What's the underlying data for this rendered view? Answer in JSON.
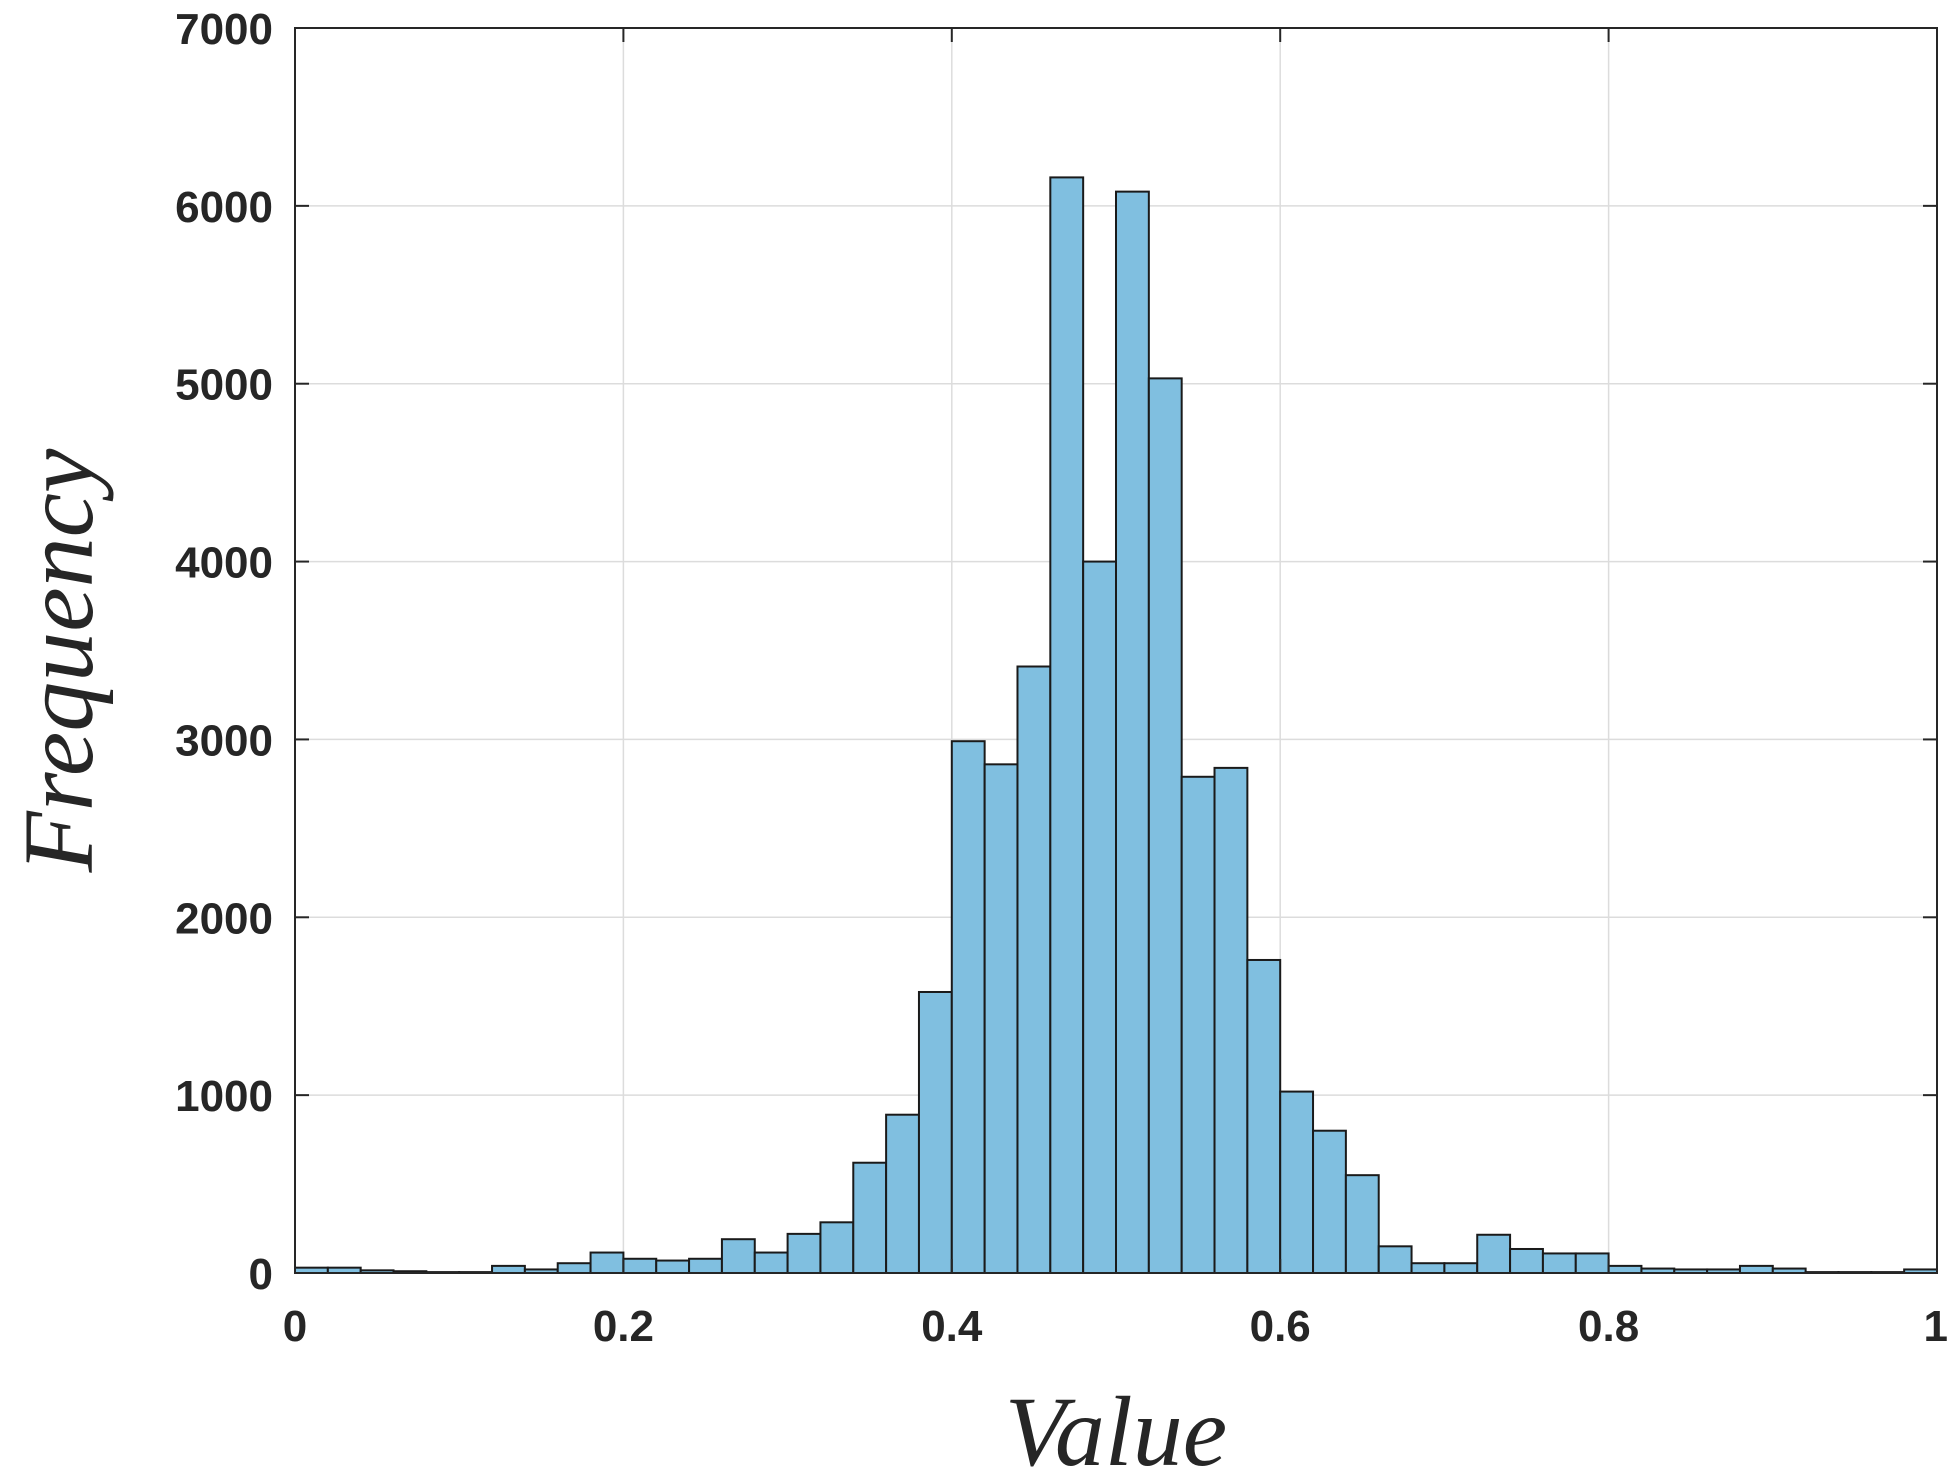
{
  "chart_data": {
    "type": "bar",
    "title": "",
    "xlabel": "Value",
    "ylabel": "Frequency",
    "xlim": [
      0,
      1
    ],
    "ylim": [
      0,
      7000
    ],
    "grid": true,
    "bar_color": "#80bfe0",
    "edge_color": "#1a1a1a",
    "bin_width": 0.02,
    "bin_starts": [
      0,
      0.02,
      0.04,
      0.06,
      0.08,
      0.1,
      0.12,
      0.14,
      0.16,
      0.18,
      0.2,
      0.22,
      0.24,
      0.26,
      0.28,
      0.3,
      0.32,
      0.34,
      0.36,
      0.38,
      0.4,
      0.42,
      0.44,
      0.46,
      0.48,
      0.5,
      0.52,
      0.54,
      0.56,
      0.58,
      0.6,
      0.62,
      0.64,
      0.66,
      0.68,
      0.7,
      0.72,
      0.74,
      0.76,
      0.78,
      0.8,
      0.82,
      0.84,
      0.86,
      0.88,
      0.9,
      0.92,
      0.94,
      0.96,
      0.98
    ],
    "values": [
      30,
      30,
      15,
      10,
      5,
      5,
      40,
      20,
      55,
      115,
      80,
      70,
      80,
      190,
      115,
      220,
      285,
      620,
      890,
      1580,
      2990,
      2860,
      3410,
      6160,
      4000,
      6080,
      5030,
      2790,
      2840,
      1760,
      1020,
      800,
      550,
      150,
      55,
      55,
      215,
      135,
      110,
      110,
      40,
      25,
      20,
      20,
      40,
      25,
      5,
      5,
      5,
      20
    ],
    "x_ticks": [
      0,
      0.2,
      0.4,
      0.6,
      0.8,
      1
    ],
    "x_tick_labels": [
      "0",
      "0.2",
      "0.4",
      "0.6",
      "0.8",
      "1"
    ],
    "y_ticks": [
      0,
      1000,
      2000,
      3000,
      4000,
      5000,
      6000,
      7000
    ],
    "y_tick_labels": [
      "0",
      "1000",
      "2000",
      "3000",
      "4000",
      "5000",
      "6000",
      "7000"
    ]
  }
}
